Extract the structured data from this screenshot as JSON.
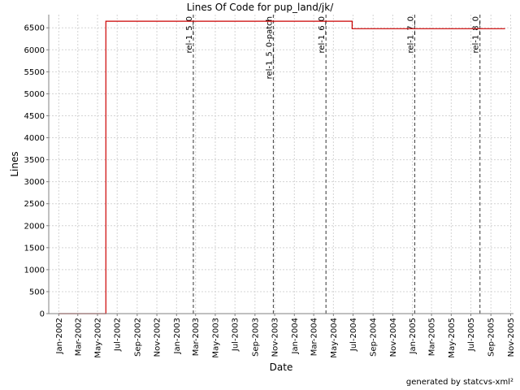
{
  "footer": "generated by statcvs-xml²",
  "chart_data": {
    "type": "line",
    "title": "Lines Of Code for pup_land/jk/",
    "xlabel": "Date",
    "ylabel": "Lines",
    "ylim": [
      0,
      6800
    ],
    "xlim": [
      "2001-12-01",
      "2005-11-10"
    ],
    "yticks": [
      0,
      500,
      1000,
      1500,
      2000,
      2500,
      3000,
      3500,
      4000,
      4500,
      5000,
      5500,
      6000,
      6500
    ],
    "xticks": [
      {
        "date": "2002-01-01",
        "label": "Jan-2002"
      },
      {
        "date": "2002-03-01",
        "label": "Mar-2002"
      },
      {
        "date": "2002-05-01",
        "label": "May-2002"
      },
      {
        "date": "2002-07-01",
        "label": "Jul-2002"
      },
      {
        "date": "2002-09-01",
        "label": "Sep-2002"
      },
      {
        "date": "2002-11-01",
        "label": "Nov-2002"
      },
      {
        "date": "2003-01-01",
        "label": "Jan-2003"
      },
      {
        "date": "2003-03-01",
        "label": "Mar-2003"
      },
      {
        "date": "2003-05-01",
        "label": "May-2003"
      },
      {
        "date": "2003-07-01",
        "label": "Jul-2003"
      },
      {
        "date": "2003-09-01",
        "label": "Sep-2003"
      },
      {
        "date": "2003-11-01",
        "label": "Nov-2003"
      },
      {
        "date": "2004-01-01",
        "label": "Jan-2004"
      },
      {
        "date": "2004-03-01",
        "label": "Mar-2004"
      },
      {
        "date": "2004-05-01",
        "label": "May-2004"
      },
      {
        "date": "2004-07-01",
        "label": "Jul-2004"
      },
      {
        "date": "2004-09-01",
        "label": "Sep-2004"
      },
      {
        "date": "2004-11-01",
        "label": "Nov-2004"
      },
      {
        "date": "2005-01-01",
        "label": "Jan-2005"
      },
      {
        "date": "2005-03-01",
        "label": "Mar-2005"
      },
      {
        "date": "2005-05-01",
        "label": "May-2005"
      },
      {
        "date": "2005-07-01",
        "label": "Jul-2005"
      },
      {
        "date": "2005-09-01",
        "label": "Sep-2005"
      },
      {
        "date": "2005-11-01",
        "label": "Nov-2005"
      }
    ],
    "series": [
      {
        "color": "#cc0000",
        "step": true,
        "points": [
          {
            "x": "2002-01-01",
            "y": 0
          },
          {
            "x": "2002-05-27",
            "y": 0
          },
          {
            "x": "2002-05-27",
            "y": 6650
          },
          {
            "x": "2004-06-28",
            "y": 6650
          },
          {
            "x": "2004-06-28",
            "y": 6480
          },
          {
            "x": "2005-10-15",
            "y": 6480
          }
        ]
      }
    ],
    "markers": [
      {
        "date": "2003-02-22",
        "label": "rel-1_5_0"
      },
      {
        "date": "2003-10-28",
        "label": "rel-1_5_0-patch"
      },
      {
        "date": "2004-04-08",
        "label": "rel-1_6_0"
      },
      {
        "date": "2005-01-08",
        "label": "rel-1_7_0"
      },
      {
        "date": "2005-07-29",
        "label": "rel-1_8_0"
      }
    ],
    "grid": true
  }
}
